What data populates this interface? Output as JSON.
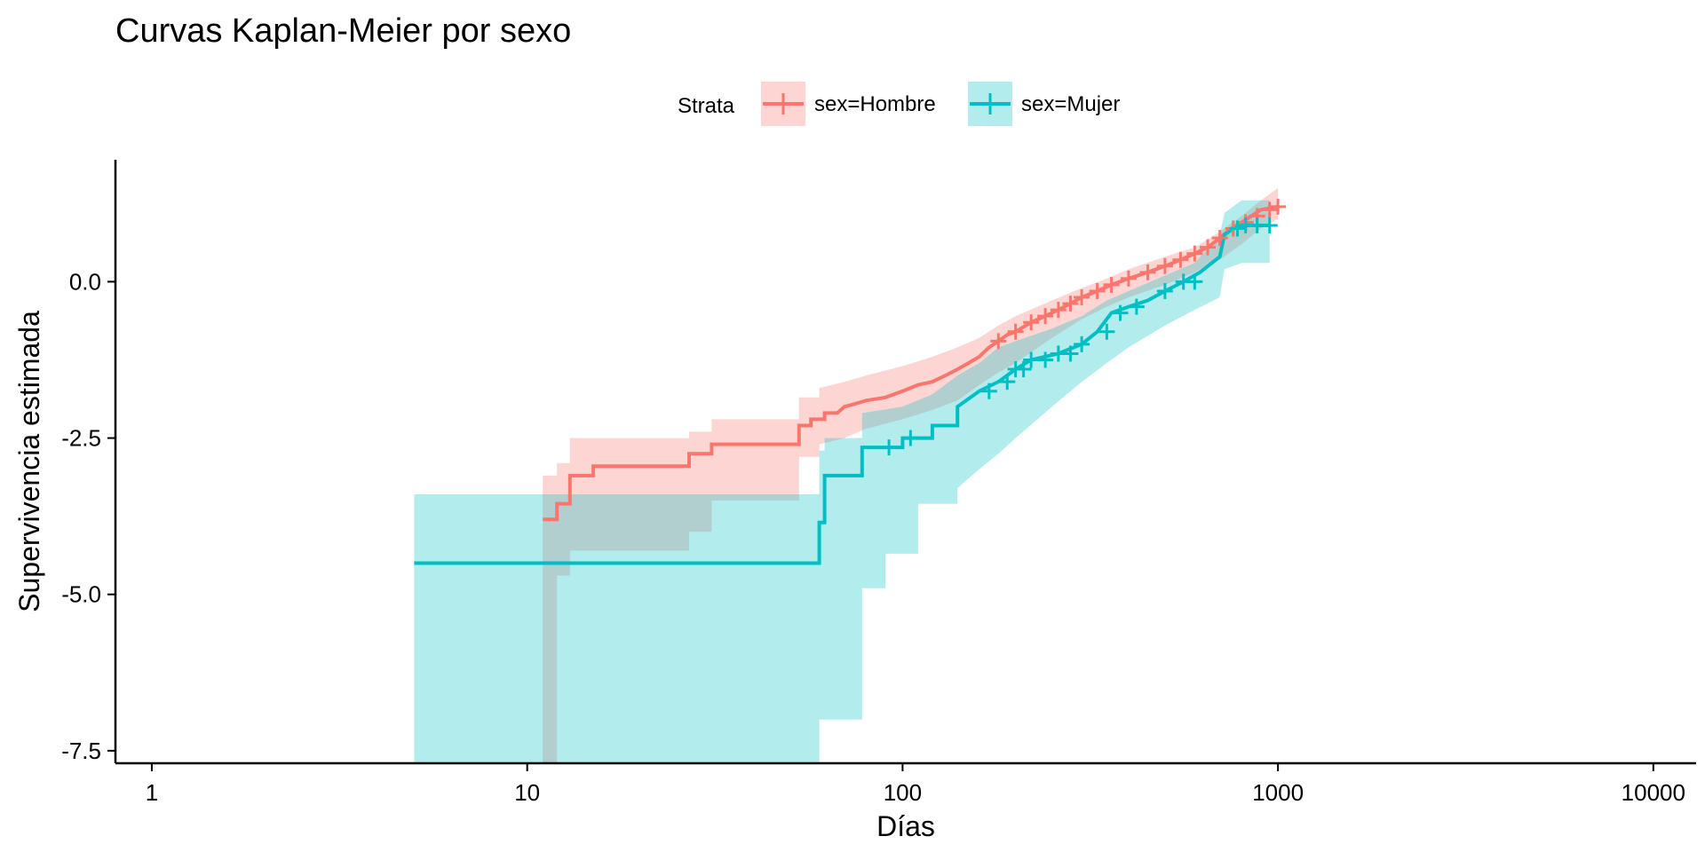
{
  "chart_data": {
    "type": "line",
    "title": "Curvas Kaplan-Meier por sexo",
    "xlabel": "Días",
    "ylabel": "Supervivencia estimada",
    "x_scale": "log10",
    "xlim": [
      0.8,
      13000
    ],
    "ylim": [
      -7.7,
      1.95
    ],
    "x_ticks": [
      1,
      10,
      100,
      1000,
      10000
    ],
    "x_tick_labels": [
      "1",
      "10",
      "100",
      "1000",
      "10000"
    ],
    "y_ticks": [
      -7.5,
      -5.0,
      -2.5,
      0.0
    ],
    "y_tick_labels": [
      "-7.5",
      "-5.0",
      "-2.5",
      "0.0"
    ],
    "grid": false,
    "legend": {
      "title": "Strata",
      "placement": "top"
    },
    "series": [
      {
        "name": "sex=Hombre",
        "color": "#F8766D",
        "line": [
          [
            11,
            -3.8
          ],
          [
            12,
            -3.8
          ],
          [
            12,
            -3.55
          ],
          [
            13,
            -3.55
          ],
          [
            13,
            -3.1
          ],
          [
            15,
            -3.1
          ],
          [
            15,
            -2.95
          ],
          [
            27,
            -2.95
          ],
          [
            27,
            -2.75
          ],
          [
            31,
            -2.75
          ],
          [
            31,
            -2.6
          ],
          [
            53,
            -2.6
          ],
          [
            53,
            -2.3
          ],
          [
            57,
            -2.3
          ],
          [
            57,
            -2.2
          ],
          [
            62,
            -2.2
          ],
          [
            62,
            -2.1
          ],
          [
            67,
            -2.1
          ],
          [
            70,
            -2.0
          ],
          [
            75,
            -1.95
          ],
          [
            80,
            -1.9
          ],
          [
            90,
            -1.85
          ],
          [
            100,
            -1.75
          ],
          [
            110,
            -1.65
          ],
          [
            120,
            -1.6
          ],
          [
            130,
            -1.5
          ],
          [
            140,
            -1.4
          ],
          [
            150,
            -1.3
          ],
          [
            160,
            -1.2
          ],
          [
            170,
            -1.05
          ],
          [
            180,
            -0.95
          ],
          [
            190,
            -0.85
          ],
          [
            200,
            -0.8
          ],
          [
            220,
            -0.65
          ],
          [
            240,
            -0.55
          ],
          [
            260,
            -0.45
          ],
          [
            280,
            -0.35
          ],
          [
            300,
            -0.25
          ],
          [
            330,
            -0.15
          ],
          [
            360,
            -0.05
          ],
          [
            400,
            0.05
          ],
          [
            450,
            0.15
          ],
          [
            500,
            0.25
          ],
          [
            550,
            0.35
          ],
          [
            600,
            0.45
          ],
          [
            650,
            0.55
          ],
          [
            700,
            0.7
          ],
          [
            750,
            0.85
          ],
          [
            800,
            0.95
          ],
          [
            850,
            1.05
          ],
          [
            900,
            1.15
          ],
          [
            1000,
            1.2
          ]
        ],
        "ci_upper": [
          [
            11,
            -3.1
          ],
          [
            12,
            -3.1
          ],
          [
            12,
            -2.9
          ],
          [
            13,
            -2.9
          ],
          [
            13,
            -2.5
          ],
          [
            27,
            -2.5
          ],
          [
            27,
            -2.4
          ],
          [
            31,
            -2.4
          ],
          [
            31,
            -2.2
          ],
          [
            53,
            -2.2
          ],
          [
            53,
            -1.85
          ],
          [
            60,
            -1.85
          ],
          [
            60,
            -1.7
          ],
          [
            70,
            -1.6
          ],
          [
            80,
            -1.5
          ],
          [
            100,
            -1.35
          ],
          [
            120,
            -1.2
          ],
          [
            140,
            -1.05
          ],
          [
            160,
            -0.9
          ],
          [
            180,
            -0.7
          ],
          [
            200,
            -0.55
          ],
          [
            250,
            -0.3
          ],
          [
            300,
            -0.1
          ],
          [
            350,
            0.05
          ],
          [
            400,
            0.2
          ],
          [
            500,
            0.4
          ],
          [
            600,
            0.55
          ],
          [
            700,
            0.8
          ],
          [
            800,
            1.05
          ],
          [
            900,
            1.3
          ],
          [
            1000,
            1.5
          ]
        ],
        "ci_lower": [
          [
            11,
            -8.0
          ],
          [
            12,
            -8.0
          ],
          [
            12,
            -4.7
          ],
          [
            13,
            -4.7
          ],
          [
            13,
            -4.3
          ],
          [
            27,
            -4.3
          ],
          [
            27,
            -4.0
          ],
          [
            31,
            -4.0
          ],
          [
            31,
            -3.5
          ],
          [
            53,
            -3.5
          ],
          [
            53,
            -2.8
          ],
          [
            60,
            -2.8
          ],
          [
            60,
            -2.6
          ],
          [
            70,
            -2.5
          ],
          [
            80,
            -2.35
          ],
          [
            100,
            -2.2
          ],
          [
            120,
            -2.05
          ],
          [
            140,
            -1.9
          ],
          [
            160,
            -1.65
          ],
          [
            180,
            -1.45
          ],
          [
            200,
            -1.3
          ],
          [
            250,
            -0.9
          ],
          [
            300,
            -0.6
          ],
          [
            350,
            -0.4
          ],
          [
            400,
            -0.25
          ],
          [
            500,
            -0.05
          ],
          [
            600,
            0.15
          ],
          [
            700,
            0.35
          ],
          [
            800,
            0.6
          ],
          [
            900,
            0.85
          ],
          [
            1000,
            1.0
          ]
        ],
        "censor_x": [
          180,
          200,
          220,
          240,
          260,
          280,
          300,
          330,
          360,
          400,
          450,
          500,
          550,
          600,
          650,
          700,
          760,
          820,
          880,
          950,
          1000
        ]
      },
      {
        "name": "sex=Mujer",
        "color": "#00BFC4",
        "line": [
          [
            5,
            -4.5
          ],
          [
            60,
            -4.5
          ],
          [
            60,
            -3.85
          ],
          [
            62,
            -3.85
          ],
          [
            62,
            -3.1
          ],
          [
            78,
            -3.1
          ],
          [
            78,
            -2.65
          ],
          [
            100,
            -2.65
          ],
          [
            100,
            -2.5
          ],
          [
            120,
            -2.5
          ],
          [
            120,
            -2.3
          ],
          [
            140,
            -2.3
          ],
          [
            140,
            -2.0
          ],
          [
            160,
            -1.75
          ],
          [
            180,
            -1.6
          ],
          [
            200,
            -1.4
          ],
          [
            220,
            -1.25
          ],
          [
            260,
            -1.15
          ],
          [
            300,
            -1.0
          ],
          [
            330,
            -0.8
          ],
          [
            360,
            -0.5
          ],
          [
            400,
            -0.4
          ],
          [
            450,
            -0.3
          ],
          [
            500,
            -0.15
          ],
          [
            560,
            0.0
          ],
          [
            620,
            0.15
          ],
          [
            700,
            0.4
          ],
          [
            720,
            0.75
          ],
          [
            760,
            0.85
          ],
          [
            800,
            0.9
          ],
          [
            950,
            0.9
          ]
        ],
        "ci_upper": [
          [
            5,
            -3.4
          ],
          [
            60,
            -3.4
          ],
          [
            60,
            -2.7
          ],
          [
            62,
            -2.7
          ],
          [
            62,
            -2.5
          ],
          [
            78,
            -2.5
          ],
          [
            78,
            -2.1
          ],
          [
            100,
            -2.0
          ],
          [
            120,
            -1.8
          ],
          [
            140,
            -1.5
          ],
          [
            160,
            -1.3
          ],
          [
            180,
            -1.05
          ],
          [
            200,
            -0.95
          ],
          [
            250,
            -0.75
          ],
          [
            300,
            -0.55
          ],
          [
            350,
            -0.3
          ],
          [
            400,
            -0.15
          ],
          [
            500,
            0.1
          ],
          [
            600,
            0.3
          ],
          [
            700,
            0.75
          ],
          [
            720,
            1.1
          ],
          [
            800,
            1.3
          ],
          [
            950,
            1.3
          ]
        ],
        "ci_lower": [
          [
            5,
            -8.0
          ],
          [
            60,
            -8.0
          ],
          [
            60,
            -7.0
          ],
          [
            78,
            -7.0
          ],
          [
            78,
            -4.9
          ],
          [
            90,
            -4.9
          ],
          [
            90,
            -4.35
          ],
          [
            110,
            -4.35
          ],
          [
            110,
            -3.55
          ],
          [
            140,
            -3.55
          ],
          [
            140,
            -3.3
          ],
          [
            160,
            -3.0
          ],
          [
            180,
            -2.75
          ],
          [
            200,
            -2.5
          ],
          [
            250,
            -2.0
          ],
          [
            300,
            -1.6
          ],
          [
            350,
            -1.3
          ],
          [
            400,
            -1.05
          ],
          [
            500,
            -0.7
          ],
          [
            600,
            -0.45
          ],
          [
            700,
            -0.25
          ],
          [
            720,
            0.2
          ],
          [
            800,
            0.3
          ],
          [
            950,
            0.3
          ]
        ],
        "censor_x": [
          92,
          105,
          170,
          190,
          200,
          210,
          220,
          240,
          260,
          280,
          300,
          350,
          380,
          420,
          500,
          560,
          600,
          780,
          820,
          880,
          950
        ]
      }
    ]
  }
}
